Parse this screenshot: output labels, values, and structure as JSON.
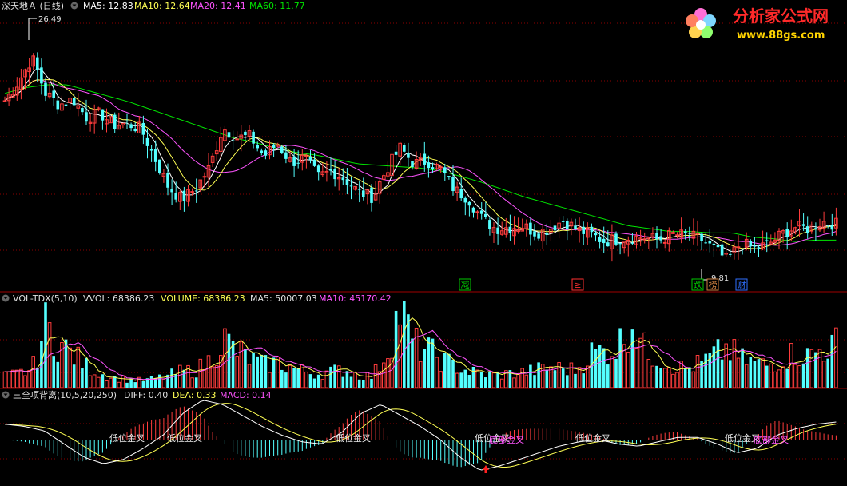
{
  "price_panel": {
    "stock_name": "深天地Ａ",
    "period": "(日线)",
    "ma5_label": "MA5: 12.83",
    "ma10_label": "MA10: 12.64",
    "ma20_label": "MA20: 12.41",
    "ma60_label": "MA60: 11.77",
    "high_marker": "26.49",
    "low_marker": "9.81",
    "event_tags": [
      {
        "text": "减",
        "color": "#00c800"
      },
      {
        "text": "≥",
        "color": "#ff3030"
      },
      {
        "text": "跌",
        "color": "#00c800"
      },
      {
        "text": "榜",
        "color": "#d08040"
      },
      {
        "text": "财",
        "color": "#2f6fff"
      }
    ]
  },
  "volume_panel": {
    "indicator": "VOL-TDX(5,10)",
    "vvol_label": "VVOL: 68386.23",
    "volume_label": "VOLUME: 68386.23",
    "ma5_label": "MA5: 50007.03",
    "ma10_label": "MA10: 45170.42"
  },
  "macd_panel": {
    "indicator": "三全项背离(10,5,20,250)",
    "diff_label": "DIFF: 0.40",
    "dea_label": "DEA: 0.33",
    "macd_label": "MACD: 0.14",
    "signal_label": "低位金叉",
    "signal_label_alt": "底部金叉"
  },
  "watermark": {
    "title": "分析家公式网",
    "url": "www.88gs.com"
  },
  "colors": {
    "up": "#ff3c3c",
    "down": "#54ffff",
    "ma5": "#ffffff",
    "ma10": "#ffff54",
    "ma20": "#ff54ff",
    "ma60": "#00e600",
    "grid": "#8b0000",
    "diff": "#ffffff",
    "dea": "#ffff54"
  },
  "chart_data": [
    {
      "type": "candlestick",
      "title": "深天地Ａ (日线)",
      "max_price": 26.49,
      "min_price": 9.81,
      "close_anchors": [
        21.5,
        22.8,
        24.5,
        22.0,
        21.2,
        21.6,
        20.3,
        20.6,
        19.8,
        19.9,
        19.5,
        17.5,
        15.5,
        14.6,
        15.4,
        16.8,
        19.6,
        18.9,
        19.0,
        17.6,
        18.5,
        17.2,
        17.5,
        16.2,
        16.6,
        16.0,
        15.1,
        14.8,
        16.7,
        18.2,
        17.1,
        17.3,
        16.7,
        15.3,
        14.7,
        13.3,
        12.6,
        12.7,
        12.8,
        12.3,
        12.6,
        13.2,
        12.5,
        12.2,
        11.7,
        11.9,
        12.0,
        12.0,
        11.8,
        12.2,
        12.1,
        11.9,
        11.2,
        10.4,
        11.6,
        11.2,
        11.5,
        12.2,
        12.7,
        12.6,
        13.1,
        12.9
      ],
      "ma60_anchors": [
        22.0,
        22.4,
        22.6,
        22.6,
        22.2,
        21.8,
        21.4,
        20.9,
        20.4,
        19.9,
        19.4,
        18.9,
        18.6,
        18.2,
        17.9,
        17.7,
        17.4,
        17.1,
        17.0,
        16.9,
        16.8,
        16.6,
        16.2,
        15.8,
        15.3,
        14.8,
        14.4,
        14.0,
        13.6,
        13.2,
        12.8,
        12.6,
        12.4,
        12.4,
        12.3,
        12.3,
        12.0,
        11.9,
        11.7,
        11.8,
        11.8
      ],
      "ma_periods": [
        5,
        10,
        20,
        60
      ],
      "ma_current": {
        "MA5": 12.83,
        "MA10": 12.64,
        "MA20": 12.41,
        "MA60": 11.77
      }
    },
    {
      "type": "bar",
      "title": "VOL-TDX(5,10)",
      "vol_anchors": [
        18000,
        22000,
        28000,
        98000,
        70000,
        52000,
        34000,
        22000,
        16000,
        13000,
        11000,
        14000,
        19000,
        26000,
        27000,
        42000,
        78000,
        58000,
        46000,
        36000,
        40000,
        32000,
        26000,
        22000,
        26000,
        28000,
        20000,
        18000,
        55000,
        125000,
        68000,
        60000,
        45000,
        35000,
        26000,
        22000,
        20000,
        22000,
        24000,
        28000,
        32000,
        30000,
        28000,
        55000,
        58000,
        65000,
        110000,
        58000,
        48000,
        35000,
        30000,
        38000,
        50000,
        62000,
        45000,
        40000,
        35000,
        45000,
        55000,
        50000,
        62000,
        68000
      ],
      "vvol": 68386.23,
      "volume": 68386.23,
      "ma5": 50007.03,
      "ma10": 45170.42
    },
    {
      "type": "bar",
      "title": "三全项背离(10,5,20,250)",
      "diff_anchors": [
        0.35,
        0.3,
        0.2,
        -0.1,
        -0.4,
        -0.55,
        -0.45,
        -0.2,
        0.1,
        0.6,
        0.9,
        0.8,
        0.55,
        0.3,
        0.1,
        -0.05,
        -0.1,
        0.15,
        0.6,
        0.8,
        0.55,
        0.3,
        0.0,
        -0.4,
        -0.7,
        -0.6,
        -0.45,
        -0.3,
        -0.15,
        -0.05,
        0.0,
        -0.1,
        -0.15,
        -0.05,
        0.05,
        0.05,
        -0.1,
        -0.3,
        -0.2,
        0.1,
        0.25,
        0.35,
        0.4
      ],
      "diff": 0.4,
      "dea": 0.33,
      "macd": 0.14
    }
  ]
}
